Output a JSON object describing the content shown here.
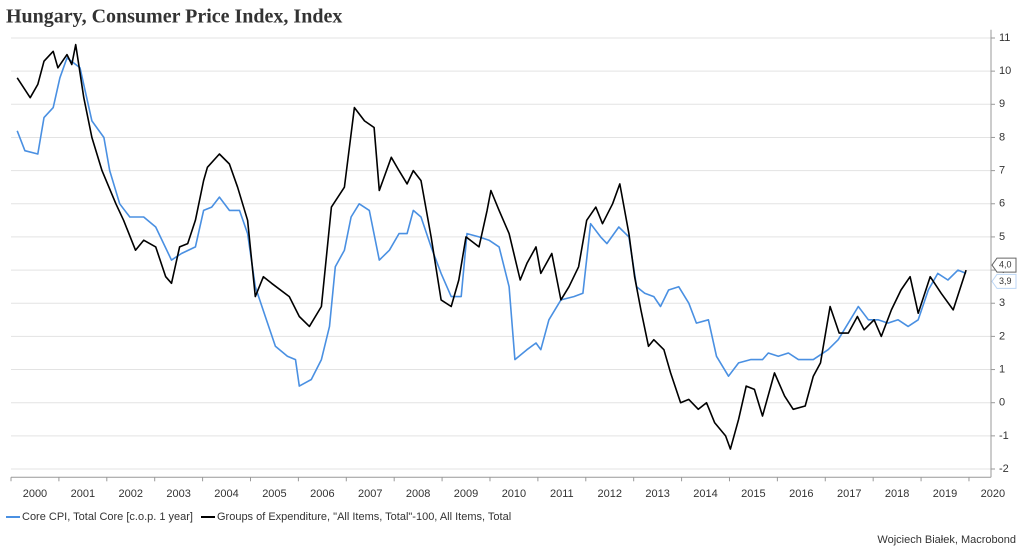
{
  "chart_data": {
    "type": "line",
    "title": "Hungary, Consumer Price Index, Index",
    "source": "Wojciech Białek, Macrobond",
    "xlim": [
      2000,
      2020.46
    ],
    "xticks": [
      2000,
      2001,
      2002,
      2003,
      2004,
      2005,
      2006,
      2007,
      2008,
      2009,
      2010,
      2011,
      2012,
      2013,
      2014,
      2015,
      2016,
      2017,
      2018,
      2019,
      2020
    ],
    "ylim": [
      -2.25,
      11.25
    ],
    "yticks": [
      -2,
      -1,
      0,
      1,
      2,
      3,
      4,
      5,
      6,
      7,
      8,
      9,
      10,
      11
    ],
    "grid": true,
    "legend": "bottom",
    "series": [
      {
        "name": "Core CPI, Total Core [c.o.p. 1 year]",
        "color": "#4a90e2",
        "x": [
          2000.13,
          2000.29,
          2000.56,
          2000.69,
          2000.88,
          2001.02,
          2001.17,
          2001.44,
          2001.69,
          2001.94,
          2002.06,
          2002.27,
          2002.48,
          2002.77,
          2003.02,
          2003.35,
          2003.56,
          2003.85,
          2004.02,
          2004.19,
          2004.35,
          2004.56,
          2004.77,
          2004.94,
          2005.1,
          2005.31,
          2005.52,
          2005.77,
          2005.94,
          2006.02,
          2006.27,
          2006.48,
          2006.65,
          2006.77,
          2006.96,
          2007.1,
          2007.27,
          2007.48,
          2007.69,
          2007.9,
          2008.1,
          2008.27,
          2008.4,
          2008.56,
          2008.77,
          2008.98,
          2009.19,
          2009.4,
          2009.52,
          2009.77,
          2009.98,
          2010.19,
          2010.4,
          2010.52,
          2010.77,
          2010.96,
          2011.06,
          2011.23,
          2011.48,
          2011.75,
          2011.94,
          2012.1,
          2012.31,
          2012.44,
          2012.69,
          2012.9,
          2013.06,
          2013.23,
          2013.42,
          2013.56,
          2013.73,
          2013.94,
          2014.15,
          2014.31,
          2014.56,
          2014.73,
          2014.98,
          2015.19,
          2015.44,
          2015.69,
          2015.81,
          2016.02,
          2016.23,
          2016.44,
          2016.75,
          2017.06,
          2017.27,
          2017.48,
          2017.69,
          2017.9,
          2018.1,
          2018.31,
          2018.52,
          2018.73,
          2018.94,
          2019.15,
          2019.35,
          2019.56,
          2019.77,
          2019.94
        ],
        "values": [
          8.2,
          7.6,
          7.5,
          8.6,
          8.9,
          9.8,
          10.4,
          10.1,
          8.5,
          8.0,
          7.0,
          6.0,
          5.6,
          5.6,
          5.3,
          4.3,
          4.5,
          4.7,
          5.8,
          5.9,
          6.2,
          5.8,
          5.8,
          5.1,
          3.5,
          2.6,
          1.7,
          1.4,
          1.3,
          0.5,
          0.7,
          1.3,
          2.3,
          4.1,
          4.6,
          5.6,
          6.0,
          5.8,
          4.3,
          4.6,
          5.1,
          5.1,
          5.8,
          5.6,
          4.7,
          3.9,
          3.2,
          3.2,
          5.1,
          5.0,
          4.9,
          4.7,
          3.5,
          1.3,
          1.6,
          1.8,
          1.6,
          2.5,
          3.1,
          3.2,
          3.3,
          5.4,
          5.0,
          4.8,
          5.3,
          5.0,
          3.5,
          3.3,
          3.2,
          2.9,
          3.4,
          3.5,
          3.0,
          2.4,
          2.5,
          1.4,
          0.8,
          1.2,
          1.3,
          1.3,
          1.5,
          1.4,
          1.5,
          1.3,
          1.3,
          1.6,
          1.9,
          2.4,
          2.9,
          2.5,
          2.5,
          2.4,
          2.5,
          2.3,
          2.5,
          3.4,
          3.9,
          3.7,
          4.0,
          3.9
        ],
        "last_value_label": "3,9"
      },
      {
        "name": "Groups of Expenditure, \"All Items, Total\"-100, All Items, Total",
        "color": "#000000",
        "x": [
          2000.13,
          2000.4,
          2000.56,
          2000.69,
          2000.88,
          2000.98,
          2001.17,
          2001.27,
          2001.35,
          2001.52,
          2001.69,
          2001.9,
          2002.19,
          2002.35,
          2002.6,
          2002.77,
          2003.02,
          2003.23,
          2003.35,
          2003.52,
          2003.69,
          2003.85,
          2004.02,
          2004.1,
          2004.35,
          2004.56,
          2004.73,
          2004.94,
          2005.1,
          2005.27,
          2005.44,
          2005.81,
          2006.02,
          2006.23,
          2006.48,
          2006.69,
          2006.96,
          2007.17,
          2007.38,
          2007.58,
          2007.69,
          2007.94,
          2008.1,
          2008.27,
          2008.4,
          2008.56,
          2008.77,
          2008.98,
          2009.19,
          2009.35,
          2009.5,
          2009.77,
          2009.94,
          2010.02,
          2010.19,
          2010.4,
          2010.63,
          2010.77,
          2010.96,
          2011.06,
          2011.29,
          2011.48,
          2011.65,
          2011.85,
          2012.02,
          2012.21,
          2012.35,
          2012.56,
          2012.71,
          2012.9,
          2013.02,
          2013.15,
          2013.31,
          2013.42,
          2013.63,
          2013.77,
          2013.98,
          2014.15,
          2014.35,
          2014.52,
          2014.69,
          2014.92,
          2015.02,
          2015.19,
          2015.35,
          2015.52,
          2015.69,
          2015.94,
          2016.15,
          2016.33,
          2016.58,
          2016.75,
          2016.9,
          2017.1,
          2017.29,
          2017.48,
          2017.67,
          2017.81,
          2018.02,
          2018.17,
          2018.38,
          2018.58,
          2018.77,
          2018.94,
          2019.19,
          2019.42,
          2019.67,
          2019.94
        ],
        "values": [
          9.8,
          9.2,
          9.6,
          10.3,
          10.6,
          10.1,
          10.5,
          10.2,
          10.8,
          9.2,
          8.0,
          7.0,
          6.0,
          5.5,
          4.6,
          4.9,
          4.7,
          3.8,
          3.6,
          4.7,
          4.8,
          5.5,
          6.7,
          7.1,
          7.5,
          7.2,
          6.5,
          5.5,
          3.2,
          3.8,
          3.6,
          3.2,
          2.6,
          2.3,
          2.9,
          5.9,
          6.5,
          8.9,
          8.5,
          8.3,
          6.4,
          7.4,
          7.0,
          6.6,
          7.0,
          6.7,
          5.0,
          3.1,
          2.9,
          3.7,
          5.0,
          4.7,
          5.8,
          6.4,
          5.8,
          5.1,
          3.7,
          4.2,
          4.7,
          3.9,
          4.5,
          3.1,
          3.5,
          4.1,
          5.5,
          5.9,
          5.4,
          6.0,
          6.6,
          5.1,
          3.8,
          2.8,
          1.7,
          1.9,
          1.6,
          0.9,
          0.0,
          0.1,
          -0.2,
          0.0,
          -0.6,
          -1.0,
          -1.4,
          -0.5,
          0.5,
          0.4,
          -0.4,
          0.9,
          0.2,
          -0.2,
          -0.1,
          0.8,
          1.2,
          2.9,
          2.1,
          2.1,
          2.6,
          2.2,
          2.5,
          2.0,
          2.8,
          3.4,
          3.8,
          2.7,
          3.8,
          3.3,
          2.8,
          4.0
        ],
        "last_value_label": "4,0"
      }
    ]
  }
}
